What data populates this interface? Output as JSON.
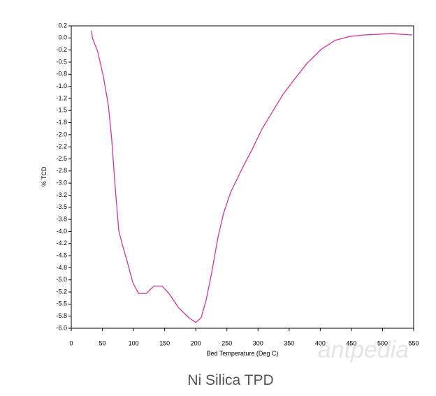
{
  "chart_data": {
    "type": "line",
    "title": "Ni Silica TPD",
    "xlabel": "Bed Temperature (Deg C)",
    "ylabel": "% TCD",
    "x": [
      32.5,
      34,
      42.6,
      51.6,
      59.5,
      65,
      70.7,
      76.3,
      82,
      90,
      99,
      108,
      121,
      132.5,
      146,
      157,
      172,
      188.6,
      200,
      208.7,
      216.6,
      225.6,
      235.7,
      244.7,
      256,
      267,
      278,
      290,
      306,
      323,
      340,
      357,
      379,
      402,
      424,
      447,
      469,
      514,
      548
    ],
    "series": [
      {
        "name": "% TCD",
        "color": "#d0359a",
        "values": [
          0.15,
          0.0,
          -0.29,
          -0.8,
          -1.38,
          -2.1,
          -3.11,
          -3.98,
          -4.27,
          -4.63,
          -5.06,
          -5.28,
          -5.28,
          -5.13,
          -5.13,
          -5.28,
          -5.57,
          -5.78,
          -5.88,
          -5.78,
          -5.42,
          -4.85,
          -4.12,
          -3.62,
          -3.19,
          -2.9,
          -2.61,
          -2.32,
          -1.89,
          -1.53,
          -1.17,
          -0.88,
          -0.52,
          -0.23,
          -0.05,
          0.03,
          0.06,
          0.09,
          0.06
        ]
      }
    ],
    "xlim": [
      0,
      550
    ],
    "xticks": [
      0,
      50,
      100,
      150,
      200,
      250,
      300,
      350,
      400,
      450,
      500,
      550
    ],
    "ylim": [
      -6.0,
      0.25
    ],
    "yticks": [
      {
        "value": 0.25,
        "label": "0.2"
      },
      {
        "value": 0,
        "label": "0.0"
      },
      {
        "value": -0.25,
        "label": "-0.2"
      },
      -0.5,
      {
        "value": -0.75,
        "label": "-0.8"
      },
      {
        "value": -1,
        "label": "-1.0"
      },
      {
        "value": -1.25,
        "label": "-1.2"
      },
      -1.5,
      {
        "value": -1.75,
        "label": "-1.8"
      },
      {
        "value": -2,
        "label": "-2.0"
      },
      {
        "value": -2.25,
        "label": "-2.2"
      },
      -2.5,
      {
        "value": -2.75,
        "label": "-2.8"
      },
      {
        "value": -3,
        "label": "-3.0"
      },
      {
        "value": -3.25,
        "label": "-3.2"
      },
      -3.5,
      {
        "value": -3.75,
        "label": "-3.8"
      },
      {
        "value": -4,
        "label": "-4.0"
      },
      {
        "value": -4.25,
        "label": "-4.2"
      },
      -4.5,
      {
        "value": -4.75,
        "label": "-4.8"
      },
      {
        "value": -5,
        "label": "-5.0"
      },
      {
        "value": -5.25,
        "label": "-5.2"
      },
      -5.5,
      {
        "value": -5.75,
        "label": "-5.8"
      },
      {
        "value": -6,
        "label": "-6.0"
      }
    ],
    "grid": false
  },
  "watermark": "antpedia"
}
